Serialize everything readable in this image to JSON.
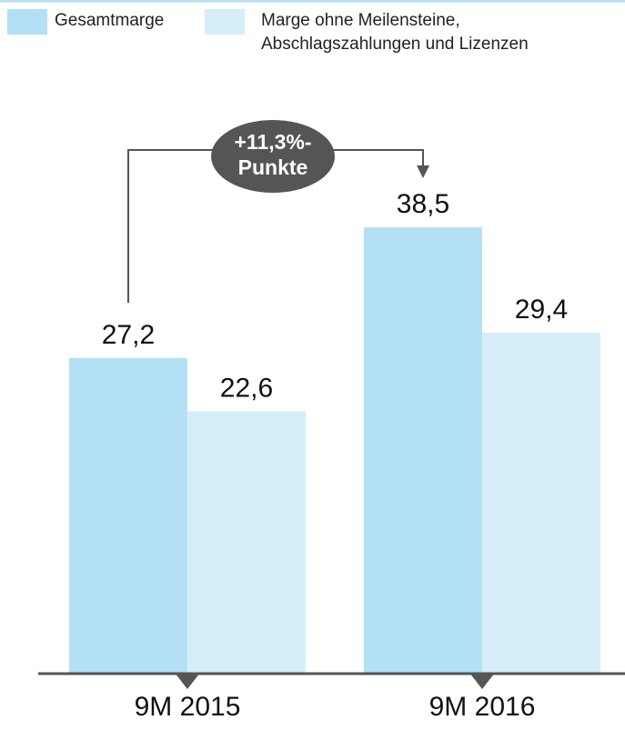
{
  "chart_data": {
    "type": "bar",
    "categories": [
      "9M 2015",
      "9M 2016"
    ],
    "series": [
      {
        "name": "Gesamtmarge",
        "color": "#b3e0f5",
        "values": [
          27.2,
          38.5
        ],
        "value_labels": [
          "27,2",
          "38,5"
        ]
      },
      {
        "name": "Marge ohne Meilensteine, Abschlagszahlungen und Lizenzen",
        "color": "#d6eefa",
        "values": [
          22.6,
          29.4
        ],
        "value_labels": [
          "22,6",
          "29,4"
        ]
      }
    ],
    "ylim": [
      0,
      40
    ],
    "annotation": [
      "+11,3%-",
      "Punkte"
    ]
  }
}
